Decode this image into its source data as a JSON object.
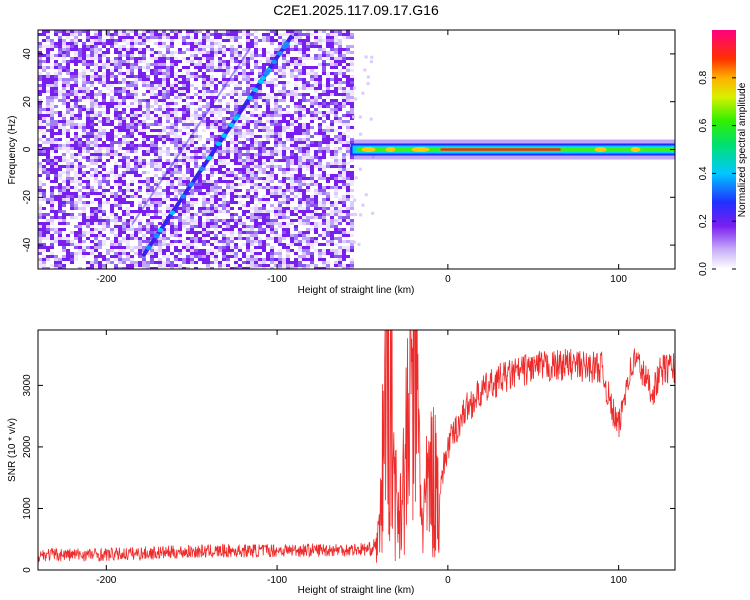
{
  "title": "C2E1.2025.117.09.17.G16",
  "colors": {
    "snr_line": "#ee2a2a",
    "spectrogram_low": "#7a1ef0",
    "frame": "#000000"
  },
  "chart_data": [
    {
      "type": "heatmap",
      "xlabel": "Height of straight line (km)",
      "ylabel": "Frequency (Hz)",
      "xlim": [
        -240,
        133
      ],
      "ylim": [
        -50,
        50
      ],
      "xticks": [
        -200,
        -100,
        0,
        100
      ],
      "yticks": [
        -40,
        -20,
        0,
        20,
        40
      ],
      "colorbar": {
        "label": "Normalized spectral amplitude",
        "range": [
          0.0,
          1.0
        ],
        "ticks": [
          0.0,
          0.2,
          0.4,
          0.6,
          0.8
        ]
      },
      "features": {
        "noise_region_x_end": -57,
        "diagonal_trace": {
          "x_start": -178,
          "y_start": -44,
          "x_end": -92,
          "y_end": 47
        },
        "tone_line_y": 0
      }
    },
    {
      "type": "line",
      "xlabel": "Height of straight line (km)",
      "ylabel": "SNR (10 * v/v)",
      "xlim": [
        -240,
        133
      ],
      "ylim": [
        0,
        3900
      ],
      "xticks": [
        -200,
        -100,
        0,
        100
      ],
      "yticks": [
        0,
        1000,
        2000,
        3000
      ],
      "series": [
        {
          "x": [
            -240,
            -200,
            -150,
            -100,
            -60,
            -45,
            -40,
            -35,
            -30,
            -25,
            -20,
            -15,
            -10,
            -5,
            0,
            10,
            20,
            30,
            40,
            50,
            60,
            70,
            80,
            90,
            95,
            100,
            105,
            110,
            115,
            120,
            125,
            133
          ],
          "values": [
            250,
            250,
            300,
            320,
            330,
            340,
            500,
            3900,
            900,
            1500,
            3900,
            800,
            1500,
            1300,
            2000,
            2600,
            2900,
            3100,
            3200,
            3300,
            3300,
            3350,
            3300,
            3300,
            2700,
            2300,
            3100,
            3450,
            3150,
            2900,
            3250,
            3300
          ]
        }
      ]
    }
  ]
}
